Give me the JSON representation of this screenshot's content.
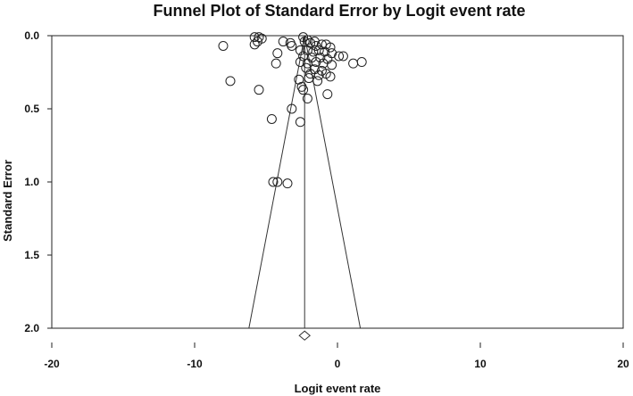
{
  "chart_data": {
    "type": "scatter",
    "title": "Funnel Plot of Standard Error by Logit event rate",
    "xlabel": "Logit event rate",
    "ylabel": "Standard Error",
    "xlim": [
      -20,
      20
    ],
    "ylim": [
      2.0,
      0.0
    ],
    "y_axis_inverted": true,
    "x_ticks": [
      "-20",
      "-10",
      "0",
      "10",
      "20"
    ],
    "x_tick_values": [
      -20,
      -10,
      0,
      10,
      20
    ],
    "y_ticks": [
      "0.0",
      "0.5",
      "1.0",
      "1.5",
      "2.0"
    ],
    "y_tick_values": [
      0.0,
      0.5,
      1.0,
      1.5,
      2.0
    ],
    "grid": false,
    "legend": "none",
    "marker": "open-circle",
    "pooled_estimate": -2.3,
    "funnel_lines": {
      "apex": [
        -2.3,
        0.0
      ],
      "lower_left": [
        -6.2,
        2.0
      ],
      "upper_right": [
        1.6,
        2.0
      ]
    },
    "summary_diamond": {
      "x": -2.3,
      "y": 2.05
    },
    "points": [
      {
        "x": -5.8,
        "y": 0.01
      },
      {
        "x": -5.5,
        "y": 0.01
      },
      {
        "x": -5.3,
        "y": 0.02
      },
      {
        "x": -5.6,
        "y": 0.04
      },
      {
        "x": -5.8,
        "y": 0.06
      },
      {
        "x": -8.0,
        "y": 0.07
      },
      {
        "x": -3.8,
        "y": 0.04
      },
      {
        "x": -3.3,
        "y": 0.05
      },
      {
        "x": -3.2,
        "y": 0.07
      },
      {
        "x": -2.4,
        "y": 0.01
      },
      {
        "x": -2.3,
        "y": 0.04
      },
      {
        "x": -2.1,
        "y": 0.03
      },
      {
        "x": -1.9,
        "y": 0.05
      },
      {
        "x": -1.6,
        "y": 0.04
      },
      {
        "x": -1.5,
        "y": 0.07
      },
      {
        "x": -1.1,
        "y": 0.06
      },
      {
        "x": -0.8,
        "y": 0.06
      },
      {
        "x": -0.5,
        "y": 0.08
      },
      {
        "x": -2.6,
        "y": 0.1
      },
      {
        "x": -2.1,
        "y": 0.1
      },
      {
        "x": -1.7,
        "y": 0.11
      },
      {
        "x": -1.3,
        "y": 0.1
      },
      {
        "x": -0.9,
        "y": 0.11
      },
      {
        "x": -0.4,
        "y": 0.12
      },
      {
        "x": 0.1,
        "y": 0.14
      },
      {
        "x": 0.4,
        "y": 0.14
      },
      {
        "x": -2.4,
        "y": 0.14
      },
      {
        "x": -1.8,
        "y": 0.15
      },
      {
        "x": -1.2,
        "y": 0.15
      },
      {
        "x": -0.7,
        "y": 0.16
      },
      {
        "x": -4.2,
        "y": 0.12
      },
      {
        "x": -4.3,
        "y": 0.19
      },
      {
        "x": -2.6,
        "y": 0.18
      },
      {
        "x": -2.1,
        "y": 0.19
      },
      {
        "x": -1.5,
        "y": 0.18
      },
      {
        "x": -1.0,
        "y": 0.19
      },
      {
        "x": -0.4,
        "y": 0.2
      },
      {
        "x": 1.1,
        "y": 0.19
      },
      {
        "x": 1.7,
        "y": 0.18
      },
      {
        "x": -2.2,
        "y": 0.22
      },
      {
        "x": -1.6,
        "y": 0.23
      },
      {
        "x": -1.1,
        "y": 0.24
      },
      {
        "x": -1.9,
        "y": 0.26
      },
      {
        "x": -1.3,
        "y": 0.27
      },
      {
        "x": -0.8,
        "y": 0.26
      },
      {
        "x": -0.5,
        "y": 0.28
      },
      {
        "x": -2.7,
        "y": 0.3
      },
      {
        "x": -2.0,
        "y": 0.29
      },
      {
        "x": -1.4,
        "y": 0.31
      },
      {
        "x": -7.5,
        "y": 0.31
      },
      {
        "x": -2.5,
        "y": 0.35
      },
      {
        "x": -2.4,
        "y": 0.37
      },
      {
        "x": -5.5,
        "y": 0.37
      },
      {
        "x": -0.7,
        "y": 0.4
      },
      {
        "x": -2.1,
        "y": 0.43
      },
      {
        "x": -3.2,
        "y": 0.5
      },
      {
        "x": -4.6,
        "y": 0.57
      },
      {
        "x": -2.6,
        "y": 0.59
      },
      {
        "x": -4.5,
        "y": 1.0
      },
      {
        "x": -4.2,
        "y": 1.0
      },
      {
        "x": -3.5,
        "y": 1.01
      }
    ]
  }
}
